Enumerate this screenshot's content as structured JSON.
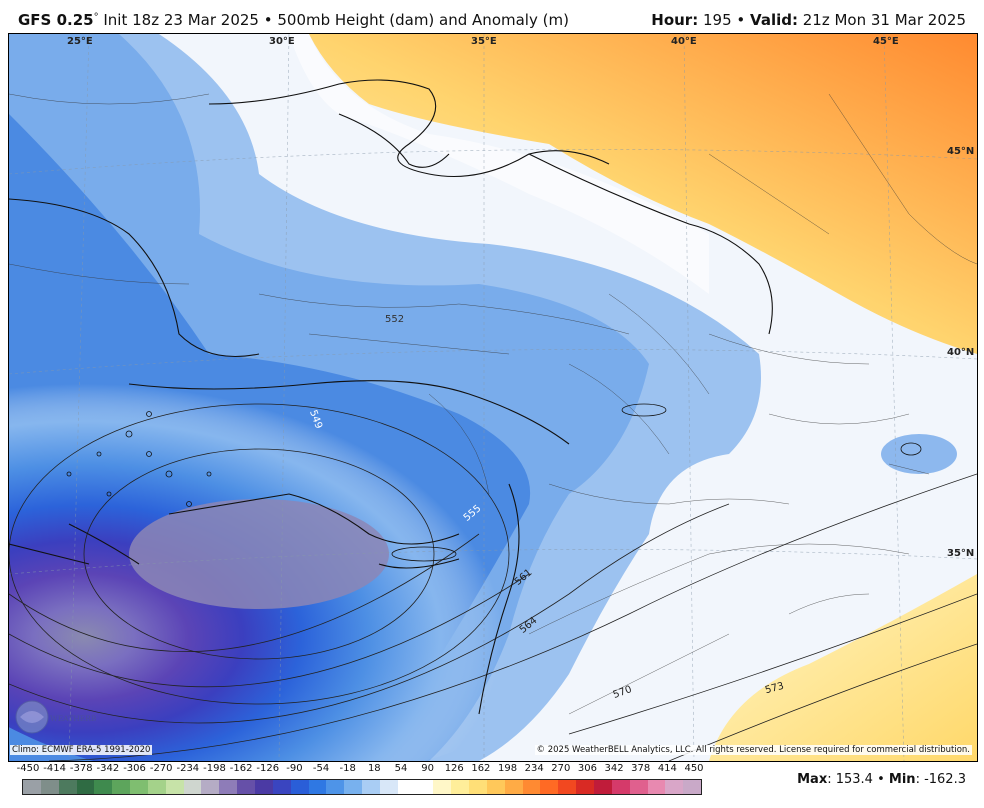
{
  "header": {
    "model": "GFS 0.25",
    "degree": "°",
    "init": "Init 18z 23 Mar 2025",
    "bullet": "•",
    "field": "500mb Height (dam) and Anomaly (m)",
    "hour_label": "Hour:",
    "hour_value": "195",
    "valid_label": "Valid:",
    "valid_value": "21z Mon 31 Mar 2025"
  },
  "map": {
    "longitude_labels": [
      "25°E",
      "30°E",
      "35°E",
      "40°E",
      "45°E"
    ],
    "latitude_labels": [
      "45°N",
      "40°N",
      "35°N"
    ],
    "contour_labels": [
      "552",
      "549",
      "555",
      "561",
      "564",
      "570",
      "573"
    ],
    "climo_note": "Climo: ECMWF ERA-5 1991-2020",
    "copyright": "© 2025 WeatherBELL Analytics, LLC. All rights reserved. License required for commercial distribution.",
    "logo_text": "WEATHERBELL"
  },
  "legend": {
    "ticks": [
      "-450",
      "-414",
      "-378",
      "-342",
      "-306",
      "-270",
      "-234",
      "-198",
      "-162",
      "-126",
      "-90",
      "-54",
      "-18",
      "18",
      "54",
      "90",
      "126",
      "162",
      "198",
      "234",
      "270",
      "306",
      "342",
      "378",
      "414",
      "450"
    ],
    "colors": [
      "#9aa0a6",
      "#7f8e8a",
      "#4d7a5e",
      "#2f6b43",
      "#3f8a4e",
      "#5da55c",
      "#7fbe70",
      "#a4d28a",
      "#c7e3a8",
      "#cfd6cf",
      "#b5acc5",
      "#8e7cb8",
      "#6650a8",
      "#4b3aa4",
      "#3a45c0",
      "#2a5ed8",
      "#2f78e3",
      "#4e94e8",
      "#78b1ee",
      "#a9cdf4",
      "#d8e7f8",
      "#ffffff",
      "#ffffff",
      "#fff7c8",
      "#ffee9a",
      "#ffdf77",
      "#ffc85a",
      "#ffab45",
      "#ff8a32",
      "#ff6a24",
      "#f24820",
      "#d92a24",
      "#c01c3a",
      "#d53a6a",
      "#e0608e",
      "#e889b0",
      "#d9a6c8",
      "#c9a9c8"
    ]
  },
  "stats": {
    "max_label": "Max",
    "max_value": "153.4",
    "min_label": "Min",
    "min_value": "-162.3",
    "bullet": "•"
  }
}
